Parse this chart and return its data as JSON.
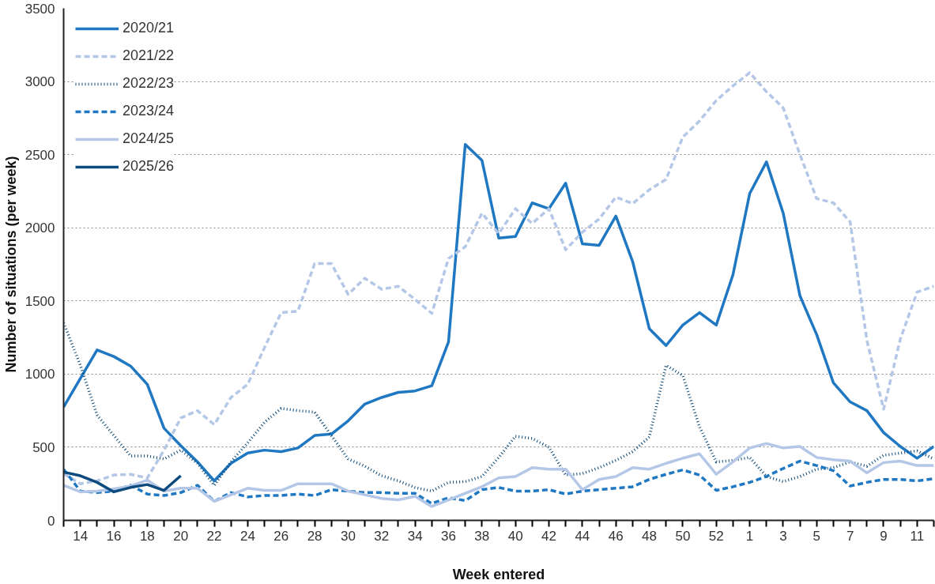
{
  "chart_data": {
    "type": "line",
    "xlabel": "Week entered",
    "ylabel": "Number of situations (per week)",
    "categories": [
      null,
      "14",
      null,
      "16",
      null,
      "18",
      null,
      "20",
      null,
      "22",
      null,
      "24",
      null,
      "26",
      null,
      "28",
      null,
      "30",
      null,
      "32",
      null,
      "34",
      null,
      "36",
      null,
      "38",
      null,
      "40",
      null,
      "42",
      null,
      "44",
      null,
      "46",
      null,
      "48",
      null,
      "50",
      null,
      "52",
      null,
      "1",
      null,
      "3",
      null,
      "5",
      null,
      "7",
      null,
      "9",
      null,
      "11",
      null
    ],
    "ylim": [
      0,
      3500
    ],
    "yticks": [
      0,
      500,
      1000,
      1500,
      2000,
      2500,
      3000,
      3500
    ],
    "grid": "y",
    "legend": "top left",
    "marker": "none",
    "series": [
      {
        "name": "2020/21",
        "color": "#1f78c1",
        "line_style": "solid",
        "values": [
          775,
          970,
          1165,
          1120,
          1055,
          930,
          630,
          510,
          400,
          270,
          390,
          460,
          480,
          470,
          495,
          580,
          590,
          680,
          795,
          840,
          875,
          885,
          920,
          1220,
          2570,
          2460,
          1930,
          1940,
          2170,
          2130,
          2305,
          1890,
          1880,
          2080,
          1770,
          1310,
          1195,
          1335,
          1420,
          1335,
          1680,
          2235,
          2450,
          2100,
          1535,
          1270,
          940,
          810,
          750,
          600,
          505,
          425,
          505
        ]
      },
      {
        "name": "2021/22",
        "color": "#b4c7e7",
        "line_style": "dashed",
        "values": [
          320,
          250,
          270,
          310,
          315,
          290,
          480,
          700,
          750,
          655,
          840,
          930,
          1180,
          1420,
          1430,
          1755,
          1755,
          1545,
          1655,
          1580,
          1600,
          1510,
          1415,
          1790,
          1870,
          2100,
          1960,
          2130,
          2030,
          2130,
          1850,
          1970,
          2060,
          2210,
          2165,
          2260,
          2330,
          2620,
          2730,
          2870,
          2970,
          3060,
          2930,
          2820,
          2500,
          2200,
          2170,
          2040,
          1230,
          760,
          1240,
          1560,
          1600
        ]
      },
      {
        "name": "2022/23",
        "color": "#0b4a7a",
        "line_style": "dotted",
        "values": [
          1350,
          1060,
          720,
          580,
          440,
          440,
          420,
          480,
          390,
          240,
          400,
          530,
          670,
          765,
          750,
          740,
          580,
          420,
          370,
          305,
          270,
          225,
          200,
          260,
          265,
          300,
          430,
          575,
          560,
          500,
          310,
          320,
          360,
          410,
          470,
          570,
          1060,
          990,
          640,
          400,
          410,
          430,
          300,
          265,
          300,
          350,
          360,
          400,
          370,
          445,
          460,
          475,
          420
        ]
      },
      {
        "name": "2023/24",
        "color": "#1f78c1",
        "line_style": "dashed",
        "values": [
          350,
          200,
          190,
          200,
          240,
          180,
          170,
          190,
          240,
          130,
          190,
          160,
          170,
          170,
          180,
          170,
          210,
          200,
          190,
          190,
          185,
          185,
          115,
          155,
          135,
          210,
          225,
          200,
          200,
          210,
          180,
          200,
          210,
          220,
          230,
          280,
          315,
          345,
          310,
          205,
          230,
          260,
          300,
          355,
          405,
          375,
          340,
          235,
          260,
          280,
          280,
          270,
          285
        ]
      },
      {
        "name": "2024/25",
        "color": "#b4c7e7",
        "line_style": "solid",
        "values": [
          240,
          195,
          200,
          215,
          235,
          275,
          200,
          220,
          220,
          130,
          175,
          220,
          205,
          205,
          250,
          250,
          250,
          200,
          175,
          150,
          140,
          165,
          95,
          140,
          185,
          230,
          290,
          300,
          360,
          350,
          350,
          210,
          280,
          300,
          360,
          350,
          390,
          425,
          455,
          315,
          400,
          495,
          525,
          495,
          505,
          430,
          415,
          405,
          325,
          395,
          405,
          375,
          375
        ]
      },
      {
        "name": "2025/26",
        "color": "#0d4a7e",
        "line_style": "solid",
        "values": [
          330,
          305,
          260,
          195,
          225,
          245,
          205,
          305,
          null,
          null,
          null,
          null,
          null,
          null,
          null,
          null,
          null,
          null,
          null,
          null,
          null,
          null,
          null,
          null,
          null,
          null,
          null,
          null,
          null,
          null,
          null,
          null,
          null,
          null,
          null,
          null,
          null,
          null,
          null,
          null,
          null,
          null,
          null,
          null,
          null,
          null,
          null,
          null,
          null,
          null,
          null,
          null,
          null
        ]
      }
    ]
  }
}
